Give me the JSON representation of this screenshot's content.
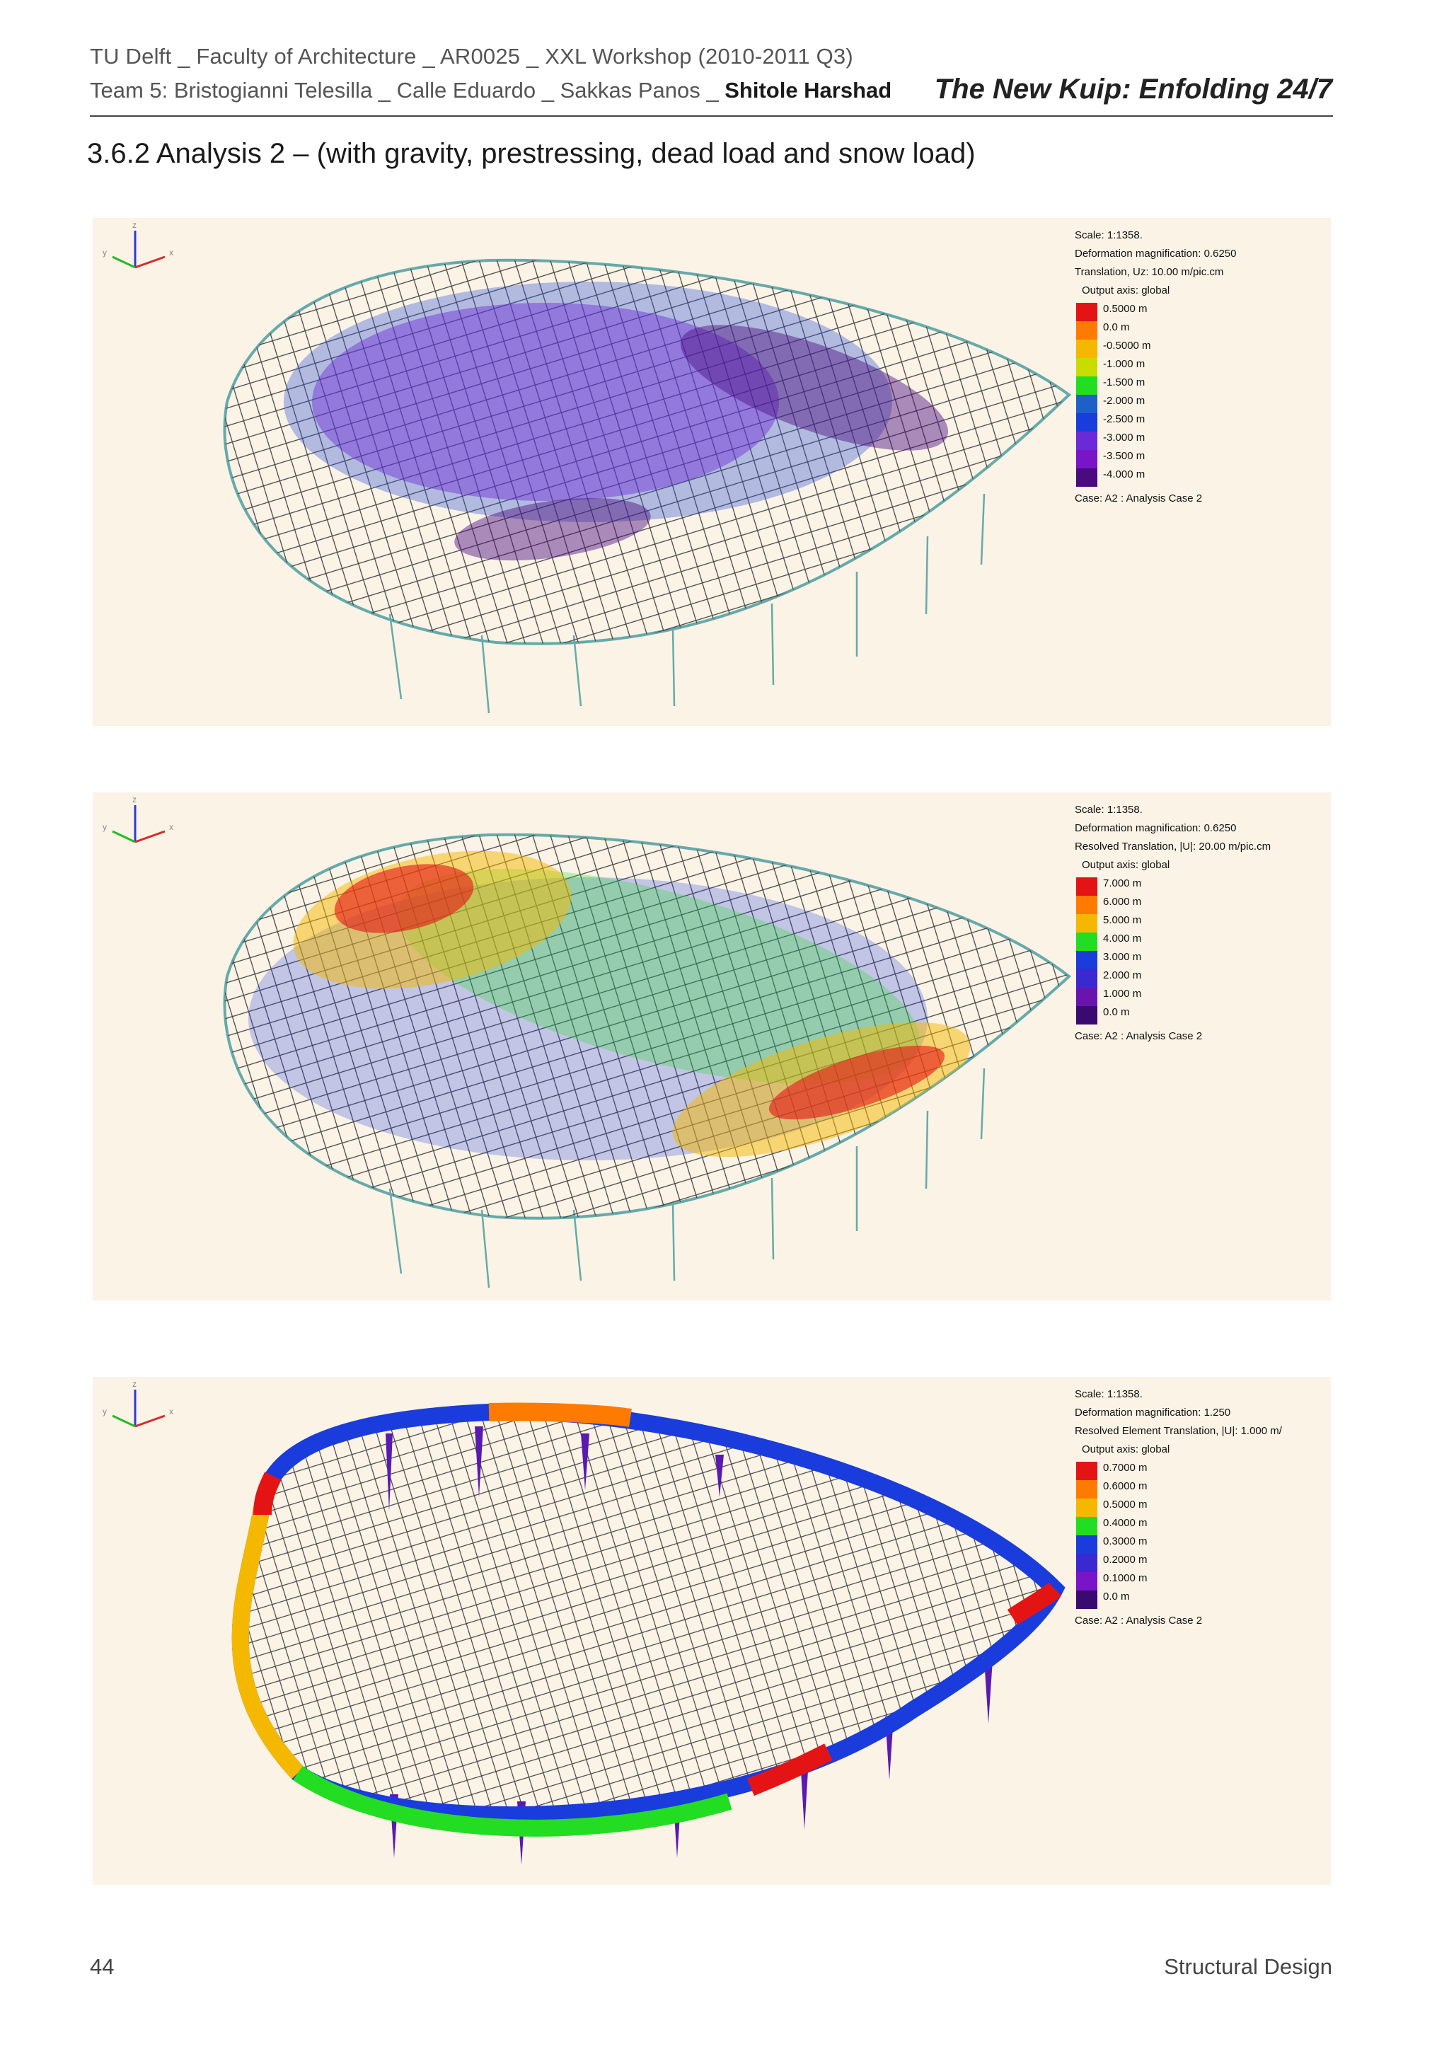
{
  "header": {
    "line1": "TU Delft _ Faculty of Architecture _ AR0025 _ XXL Workshop  (2010-2011 Q3)",
    "line2_prefix": "Team 5: Bristogianni Telesilla _ Calle Eduardo _ Sakkas Panos _ ",
    "line2_bold": "Shitole Harshad",
    "title": "The New Kuip: Enfolding 24/7"
  },
  "section_title": "3.6.2 Analysis 2 – (with gravity, prestressing, dead load and snow load)",
  "panels": [
    {
      "meta": [
        "Scale: 1:1358.",
        "Deformation magnification: 0.6250",
        "Translation, Uz: 10.00 m/pic.cm"
      ],
      "axis": "Output axis: global",
      "legend": [
        {
          "label": "0.5000 m",
          "color": "#e41414"
        },
        {
          "label": "0.0 m",
          "color": "#ff7a00"
        },
        {
          "label": "-0.5000 m",
          "color": "#f5b800"
        },
        {
          "label": "-1.000 m",
          "color": "#c8dc00"
        },
        {
          "label": "-1.500 m",
          "color": "#22dd22"
        },
        {
          "label": "-2.000 m",
          "color": "#1e60c8"
        },
        {
          "label": "-2.500 m",
          "color": "#1a3cdc"
        },
        {
          "label": "-3.000 m",
          "color": "#6a2ad8"
        },
        {
          "label": "-3.500 m",
          "color": "#7a14c8"
        },
        {
          "label": "-4.000 m",
          "color": "#4a0a80"
        }
      ],
      "case": "Case: A2 : Analysis Case 2"
    },
    {
      "meta": [
        "Scale: 1:1358.",
        "Deformation magnification: 0.6250",
        "Resolved Translation, |U|: 20.00 m/pic.cm"
      ],
      "axis": "Output axis: global",
      "legend": [
        {
          "label": "7.000 m",
          "color": "#e41414"
        },
        {
          "label": "6.000 m",
          "color": "#ff7a00"
        },
        {
          "label": "5.000 m",
          "color": "#f5b800"
        },
        {
          "label": "4.000 m",
          "color": "#22dd22"
        },
        {
          "label": "3.000 m",
          "color": "#1a3cdc"
        },
        {
          "label": "2.000 m",
          "color": "#3a28d0"
        },
        {
          "label": "1.000 m",
          "color": "#6a14b0"
        },
        {
          "label": "0.0 m",
          "color": "#3a0a70"
        }
      ],
      "case": "Case: A2 : Analysis Case 2"
    },
    {
      "meta": [
        "Scale: 1:1358.",
        "Deformation magnification: 1.250",
        "Resolved Element Translation, |U|: 1.000 m/"
      ],
      "axis": "Output axis: global",
      "legend": [
        {
          "label": "0.7000 m",
          "color": "#e41414"
        },
        {
          "label": "0.6000 m",
          "color": "#ff7a00"
        },
        {
          "label": "0.5000 m",
          "color": "#f5b800"
        },
        {
          "label": "0.4000 m",
          "color": "#22dd22"
        },
        {
          "label": "0.3000 m",
          "color": "#1a3cdc"
        },
        {
          "label": "0.2000 m",
          "color": "#3a28d0"
        },
        {
          "label": "0.1000 m",
          "color": "#7a14c8"
        },
        {
          "label": "0.0 m",
          "color": "#3a0a70"
        }
      ],
      "case": "Case: A2 : Analysis Case 2"
    }
  ],
  "triad_labels": {
    "z": "z",
    "y": "y",
    "x": "x"
  },
  "footer": {
    "page_number": "44",
    "section": "Structural Design"
  }
}
